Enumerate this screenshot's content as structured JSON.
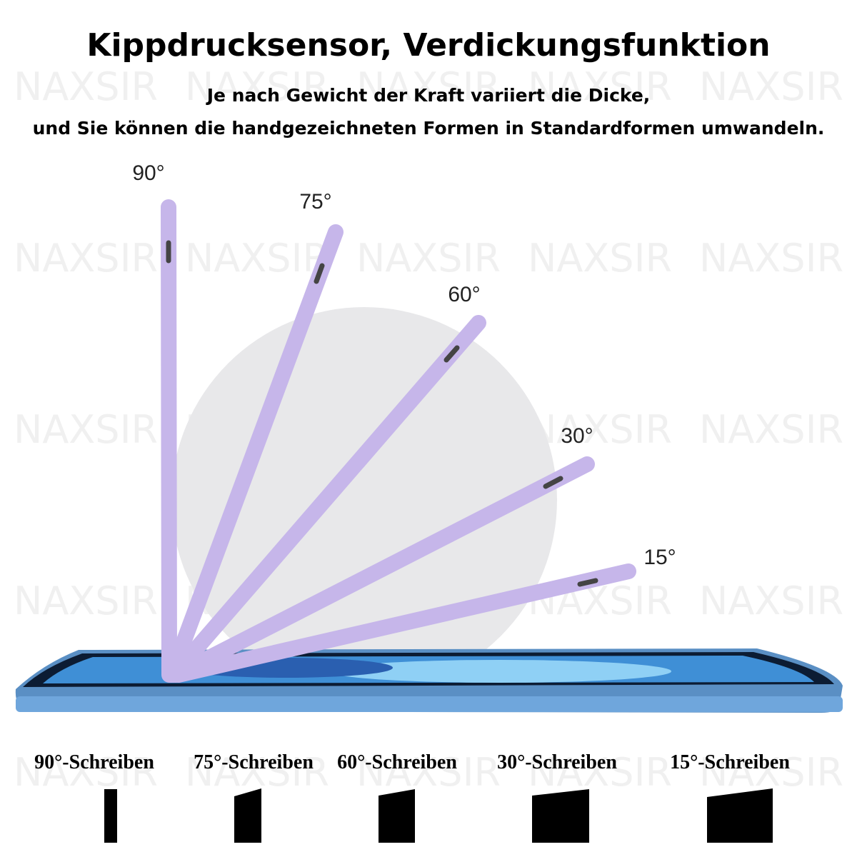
{
  "header": {
    "title": "Kippdrucksensor, Verdickungsfunktion",
    "subtitle_lines": [
      "Je nach Gewicht der Kraft variiert die Dicke,",
      "und Sie können die handgezeichneten Formen in Standardformen umwandeln."
    ]
  },
  "watermark": "NAXSIR",
  "pens": [
    {
      "angle": "90°"
    },
    {
      "angle": "75°"
    },
    {
      "angle": "60°"
    },
    {
      "angle": "30°"
    },
    {
      "angle": "15°"
    }
  ],
  "strokes": [
    {
      "label": "90°-Schreiben"
    },
    {
      "label": "75°-Schreiben"
    },
    {
      "label": "60°-Schreiben"
    },
    {
      "label": "30°-Schreiben"
    },
    {
      "label": "15°-Schreiben"
    }
  ]
}
